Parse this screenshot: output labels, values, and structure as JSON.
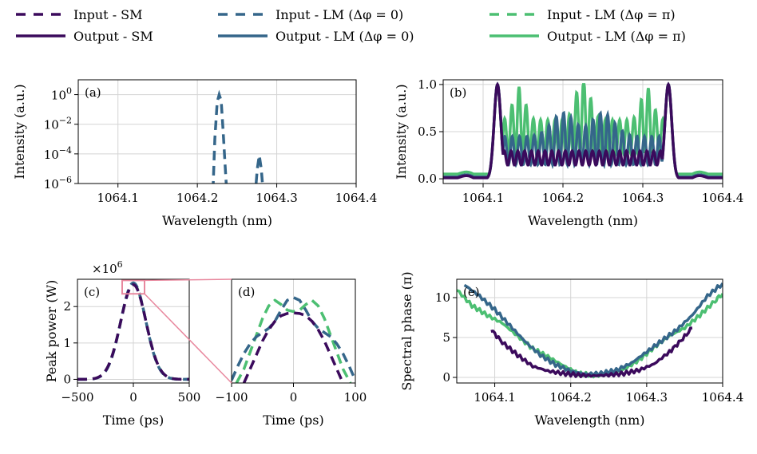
{
  "colors": {
    "sm": "#3b0a5c",
    "lm0": "#35668a",
    "lmpi": "#4cbf72",
    "zoom": "#e8889e",
    "grid": "#d4d4d4"
  },
  "legend": [
    {
      "label": "Input   - SM",
      "series": "sm",
      "style": "dashed"
    },
    {
      "label": "Output - SM",
      "series": "sm",
      "style": "solid"
    },
    {
      "label": "Input   - LM (Δφ = 0)",
      "series": "lm0",
      "style": "dashed"
    },
    {
      "label": "Output - LM (Δφ = 0)",
      "series": "lm0",
      "style": "solid"
    },
    {
      "label": "Input   - LM (Δφ = π)",
      "series": "lmpi",
      "style": "dashed"
    },
    {
      "label": "Output - LM (Δφ = π)",
      "series": "lmpi",
      "style": "solid"
    }
  ],
  "chart_data": [
    {
      "id": "a",
      "type": "line",
      "panel_label": "(a)",
      "xlabel": "Wavelength (nm)",
      "ylabel": "Intensity (a.u.)",
      "xlim": [
        1064.05,
        1064.4
      ],
      "ylim_log10": [
        -6,
        1
      ],
      "yscale": "log",
      "xticks": [
        1064.1,
        1064.2,
        1064.3,
        1064.4
      ],
      "xtick_labels": [
        "1064.1",
        "1064.2",
        "1064.3",
        "1064.4"
      ],
      "yticks": [
        -6,
        -4,
        -2,
        0
      ],
      "ytick_labels": [
        "10^-6",
        "10^-4",
        "10^-2",
        "10^0"
      ],
      "series": [
        {
          "key": "lm0",
          "style": "dashed",
          "x": [
            1064.219,
            1064.222,
            1064.225,
            1064.2275,
            1064.23,
            1064.2325,
            1064.235,
            1064.2375
          ],
          "log_y": [
            -7.5,
            -3.0,
            -0.5,
            0.0,
            -0.4,
            -2.5,
            -4.8,
            -7.0
          ]
        },
        {
          "key": "lm0",
          "style": "dashed",
          "x": [
            1064.2725,
            1064.2755,
            1064.278,
            1064.2805,
            1064.2835
          ],
          "log_y": [
            -7.0,
            -5.0,
            -4.1,
            -5.0,
            -7.0
          ]
        }
      ]
    },
    {
      "id": "b",
      "type": "line",
      "panel_label": "(b)",
      "xlabel": "Wavelength (nm)",
      "ylabel": "Intensity (a.u.)",
      "xlim": [
        1064.05,
        1064.4
      ],
      "ylim": [
        -0.05,
        1.05
      ],
      "xticks": [
        1064.1,
        1064.2,
        1064.3,
        1064.4
      ],
      "xtick_labels": [
        "1064.1",
        "1064.2",
        "1064.3",
        "1064.4"
      ],
      "yticks": [
        0,
        0.5,
        1
      ],
      "ytick_labels": [
        "0.0",
        "0.5",
        "1.0"
      ],
      "series": [
        {
          "key": "lmpi",
          "style": "solid",
          "model": "beat",
          "floor": 0.05,
          "fringe_period": 0.009,
          "mid_level": 0.45,
          "fringe_depth": 0.35
        },
        {
          "key": "lm0",
          "style": "solid",
          "model": "beat",
          "floor": 0.02,
          "fringe_period": 0.0092,
          "mid_level": 0.3,
          "fringe_depth": 0.3
        },
        {
          "key": "sm",
          "style": "solid",
          "model": "beat",
          "floor": 0.01,
          "fringe_period": 0.0085,
          "mid_level": 0.22,
          "fringe_depth": 0.15
        }
      ]
    },
    {
      "id": "c",
      "type": "line",
      "panel_label": "(c)",
      "xlabel": "Time (ps)",
      "ylabel": "Peak power (W)",
      "y_multiplier": "×10^6",
      "xlim": [
        -500,
        500
      ],
      "ylim": [
        -0.1,
        2.75
      ],
      "xticks": [
        -500,
        0,
        500
      ],
      "xtick_labels": [
        "−500",
        "0",
        "500"
      ],
      "yticks": [
        0,
        1,
        2
      ],
      "ytick_labels": [
        "0",
        "1",
        "2"
      ],
      "zoom_box": {
        "x": [
          -100,
          100
        ],
        "y": [
          2.35,
          2.72
        ]
      },
      "series": [
        {
          "key": "lmpi",
          "style": "dashed",
          "peak": 2.62,
          "sigma": 160
        },
        {
          "key": "lm0",
          "style": "dashed",
          "peak": 2.65,
          "sigma": 158
        },
        {
          "key": "sm",
          "style": "dashed",
          "peak": 2.6,
          "sigma": 161
        }
      ]
    },
    {
      "id": "d",
      "type": "line",
      "panel_label": "(d)",
      "xlabel": "Time (ps)",
      "ylabel": "",
      "xlim": [
        -100,
        100
      ],
      "ylim": [
        2.35,
        2.72
      ],
      "xticks": [
        -100,
        0,
        100
      ],
      "xtick_labels": [
        "−100",
        "0",
        "100"
      ],
      "yticks": [],
      "ytick_labels": [],
      "series": [
        {
          "key": "lmpi",
          "style": "dashed",
          "x": [
            -92,
            -80,
            -70,
            -60,
            -50,
            -40,
            -30,
            -20,
            -10,
            0,
            10,
            20,
            30,
            40,
            50,
            60,
            70,
            80,
            92
          ],
          "y": [
            2.35,
            2.4,
            2.46,
            2.52,
            2.58,
            2.625,
            2.645,
            2.63,
            2.61,
            2.605,
            2.61,
            2.63,
            2.645,
            2.625,
            2.58,
            2.52,
            2.46,
            2.4,
            2.35
          ]
        },
        {
          "key": "lm0",
          "style": "dashed",
          "x": [
            -100,
            -90,
            -80,
            -70,
            -60,
            -50,
            -40,
            -30,
            -20,
            -10,
            0,
            10,
            20,
            30,
            40,
            50,
            60,
            70,
            80,
            90,
            100
          ],
          "y": [
            2.36,
            2.41,
            2.455,
            2.49,
            2.515,
            2.53,
            2.545,
            2.57,
            2.61,
            2.645,
            2.655,
            2.645,
            2.61,
            2.57,
            2.545,
            2.53,
            2.515,
            2.49,
            2.455,
            2.41,
            2.36
          ]
        },
        {
          "key": "sm",
          "style": "dashed",
          "x": [
            -80,
            -70,
            -60,
            -50,
            -40,
            -30,
            -20,
            -10,
            0,
            10,
            20,
            30,
            40,
            50,
            60,
            70,
            80
          ],
          "y": [
            2.35,
            2.4,
            2.45,
            2.5,
            2.54,
            2.57,
            2.59,
            2.598,
            2.6,
            2.598,
            2.59,
            2.57,
            2.54,
            2.5,
            2.45,
            2.4,
            2.35
          ]
        }
      ]
    },
    {
      "id": "e",
      "type": "line",
      "panel_label": "(e)",
      "xlabel": "Wavelength (nm)",
      "ylabel": "Spectral phase (π)",
      "xlim": [
        1064.05,
        1064.4
      ],
      "ylim": [
        -0.7,
        12.3
      ],
      "xticks": [
        1064.1,
        1064.2,
        1064.3,
        1064.4
      ],
      "xtick_labels": [
        "1064.1",
        "1064.2",
        "1064.3",
        "1064.4"
      ],
      "yticks": [
        0,
        5,
        10
      ],
      "ytick_labels": [
        "0",
        "5",
        "10"
      ],
      "series": [
        {
          "key": "lmpi",
          "style": "solid",
          "x": [
            1064.05,
            1064.07,
            1064.09,
            1064.11,
            1064.13,
            1064.15,
            1064.17,
            1064.19,
            1064.21,
            1064.23,
            1064.25,
            1064.27,
            1064.29,
            1064.31,
            1064.33,
            1064.35,
            1064.37,
            1064.39,
            1064.4
          ],
          "y": [
            11.0,
            9.0,
            7.8,
            6.8,
            5.2,
            3.6,
            2.6,
            1.5,
            0.5,
            0.3,
            0.4,
            1.0,
            2.2,
            3.8,
            5.2,
            6.2,
            7.8,
            9.6,
            10.5
          ]
        },
        {
          "key": "lm0",
          "style": "solid",
          "x": [
            1064.06,
            1064.08,
            1064.1,
            1064.12,
            1064.14,
            1064.16,
            1064.18,
            1064.2,
            1064.22,
            1064.24,
            1064.26,
            1064.28,
            1064.3,
            1064.32,
            1064.34,
            1064.36,
            1064.38,
            1064.4
          ],
          "y": [
            11.6,
            10.2,
            8.5,
            6.5,
            4.5,
            2.8,
            1.6,
            0.8,
            0.4,
            0.5,
            0.9,
            1.8,
            3.2,
            4.6,
            6.0,
            7.8,
            10.2,
            11.8
          ]
        },
        {
          "key": "sm",
          "style": "solid",
          "x": [
            1064.095,
            1064.11,
            1064.13,
            1064.15,
            1064.17,
            1064.19,
            1064.21,
            1064.23,
            1064.25,
            1064.27,
            1064.29,
            1064.31,
            1064.33,
            1064.345,
            1064.36
          ],
          "y": [
            6.0,
            4.4,
            2.8,
            1.4,
            0.8,
            0.5,
            0.3,
            0.2,
            0.3,
            0.5,
            0.9,
            1.7,
            3.2,
            4.6,
            6.2
          ]
        }
      ]
    }
  ]
}
